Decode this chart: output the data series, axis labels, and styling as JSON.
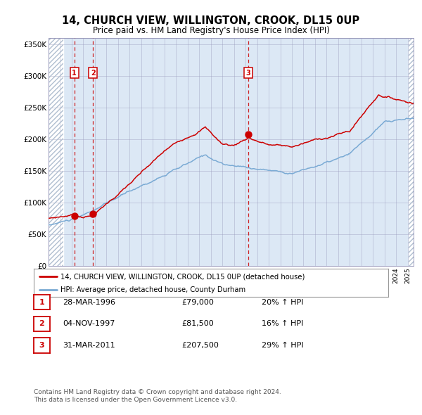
{
  "title": "14, CHURCH VIEW, WILLINGTON, CROOK, DL15 0UP",
  "subtitle": "Price paid vs. HM Land Registry's House Price Index (HPI)",
  "legend_line1": "14, CHURCH VIEW, WILLINGTON, CROOK, DL15 0UP (detached house)",
  "legend_line2": "HPI: Average price, detached house, County Durham",
  "transactions": [
    {
      "label": "1",
      "date": "28-MAR-1996",
      "price": 79000,
      "price_str": "£79,000",
      "pct": "20% ↑ HPI",
      "x_year": 1996.23
    },
    {
      "label": "2",
      "date": "04-NOV-1997",
      "price": 81500,
      "price_str": "£81,500",
      "pct": "16% ↑ HPI",
      "x_year": 1997.84
    },
    {
      "label": "3",
      "date": "31-MAR-2011",
      "price": 207500,
      "price_str": "£207,500",
      "pct": "29% ↑ HPI",
      "x_year": 2011.25
    }
  ],
  "footnote1": "Contains HM Land Registry data © Crown copyright and database right 2024.",
  "footnote2": "This data is licensed under the Open Government Licence v3.0.",
  "hpi_color": "#7aaad4",
  "price_color": "#cc0000",
  "bg_color": "#dce8f5",
  "hatch_color": "#b0bfd0",
  "grid_color": "#9999bb",
  "dashed_color": "#cc0000",
  "ylim": [
    0,
    360000
  ],
  "xlim_start": 1994.0,
  "xlim_end": 2025.5,
  "yticks": [
    0,
    50000,
    100000,
    150000,
    200000,
    250000,
    300000,
    350000
  ],
  "ytick_labels": [
    "£0",
    "£50K",
    "£100K",
    "£150K",
    "£200K",
    "£250K",
    "£300K",
    "£350K"
  ]
}
